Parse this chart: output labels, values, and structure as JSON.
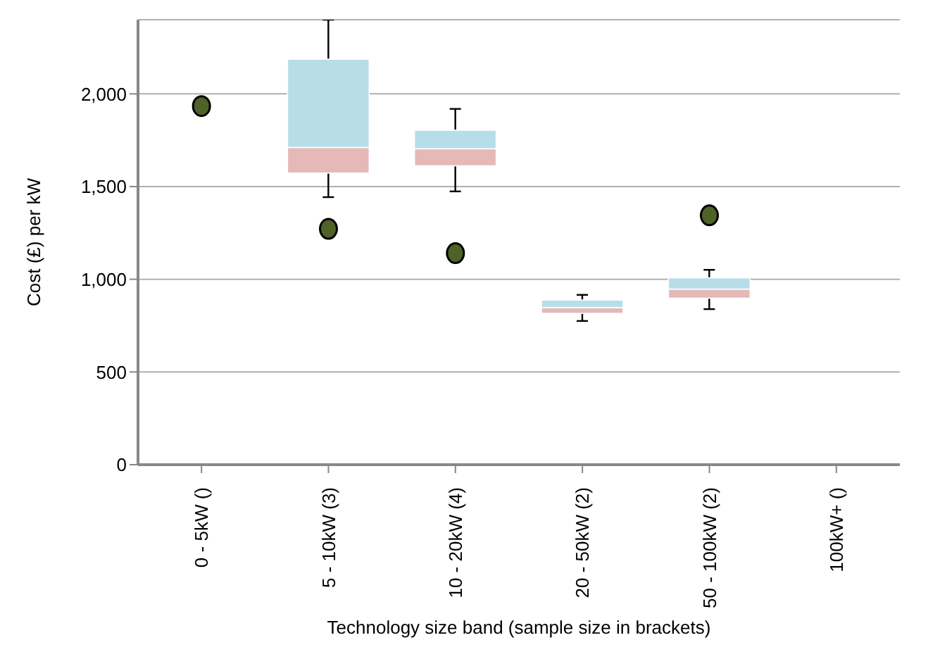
{
  "chart_data": {
    "type": "box",
    "xlabel": "Technology size band (sample size in brackets)",
    "ylabel": "Cost (£) per kW",
    "categories": [
      "0 - 5kW ()",
      "5 - 10kW (3)",
      "10 - 20kW (4)",
      "20 - 50kW (2)",
      "50 - 100kW (2)",
      "100kW+ ()"
    ],
    "ylim": [
      0,
      2400
    ],
    "yticks": [
      0,
      {
        "value": 500,
        "label": "500"
      },
      {
        "value": 1000,
        "label": "1,000"
      },
      {
        "value": 1500,
        "label": "1,500"
      },
      {
        "value": 2000,
        "label": "2,000"
      }
    ],
    "grid": "y",
    "legend": false,
    "series": [
      {
        "color": "#b7dee8",
        "colors": [
          "#e6b8b7",
          "#e6b8b7",
          "#e6b8b7",
          "#e6b8b7",
          "#e6b8b7",
          "#e6b8b7"
        ],
        "boxes": [
          null,
          {
            "low": 1443,
            "q1": 1573,
            "median": 1711,
            "q3": 2187,
            "high": 2400
          },
          {
            "low": 1474,
            "q1": 1612,
            "median": 1704,
            "q3": 1804,
            "high": 1919
          },
          {
            "low": 775,
            "q1": 816,
            "median": 847,
            "q3": 888,
            "high": 916
          },
          {
            "low": 839,
            "q1": 898,
            "median": 947,
            "q3": 1008,
            "high": 1051
          },
          null
        ]
      },
      {
        "type": "scatter",
        "color": "#4f6228",
        "marker": "circle",
        "x": [
          "0 - 5kW ()",
          "5 - 10kW (3)",
          "10 - 20kW (4)",
          "50 - 100kW (2)"
        ],
        "values": [
          1934,
          1272,
          1141,
          1345
        ]
      }
    ]
  }
}
